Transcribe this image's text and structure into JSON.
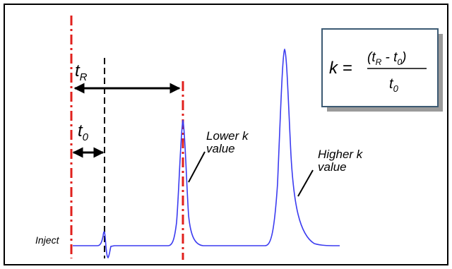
{
  "labels": {
    "t_r_base": "t",
    "t_r_sub": "R",
    "t_0_base": "t",
    "t_0_sub": "0",
    "inject": "Inject",
    "lower_line1": "Lower k",
    "lower_line2": "value",
    "higher_line1": "Higher k",
    "higher_line2": "value"
  },
  "formula": {
    "lhs": "k =",
    "num_open": "(t",
    "num_sub1": "R",
    "num_mid": " - t",
    "num_sub2": "0",
    "num_close": ")",
    "den_base": "t",
    "den_sub": "0"
  },
  "colors": {
    "frame": "#000000",
    "red_line": "#e0201c",
    "black_line": "#000000",
    "trace": "#3b3bf0",
    "box_border": "#3c5a73",
    "box_shadow": "#9a9a9a"
  }
}
